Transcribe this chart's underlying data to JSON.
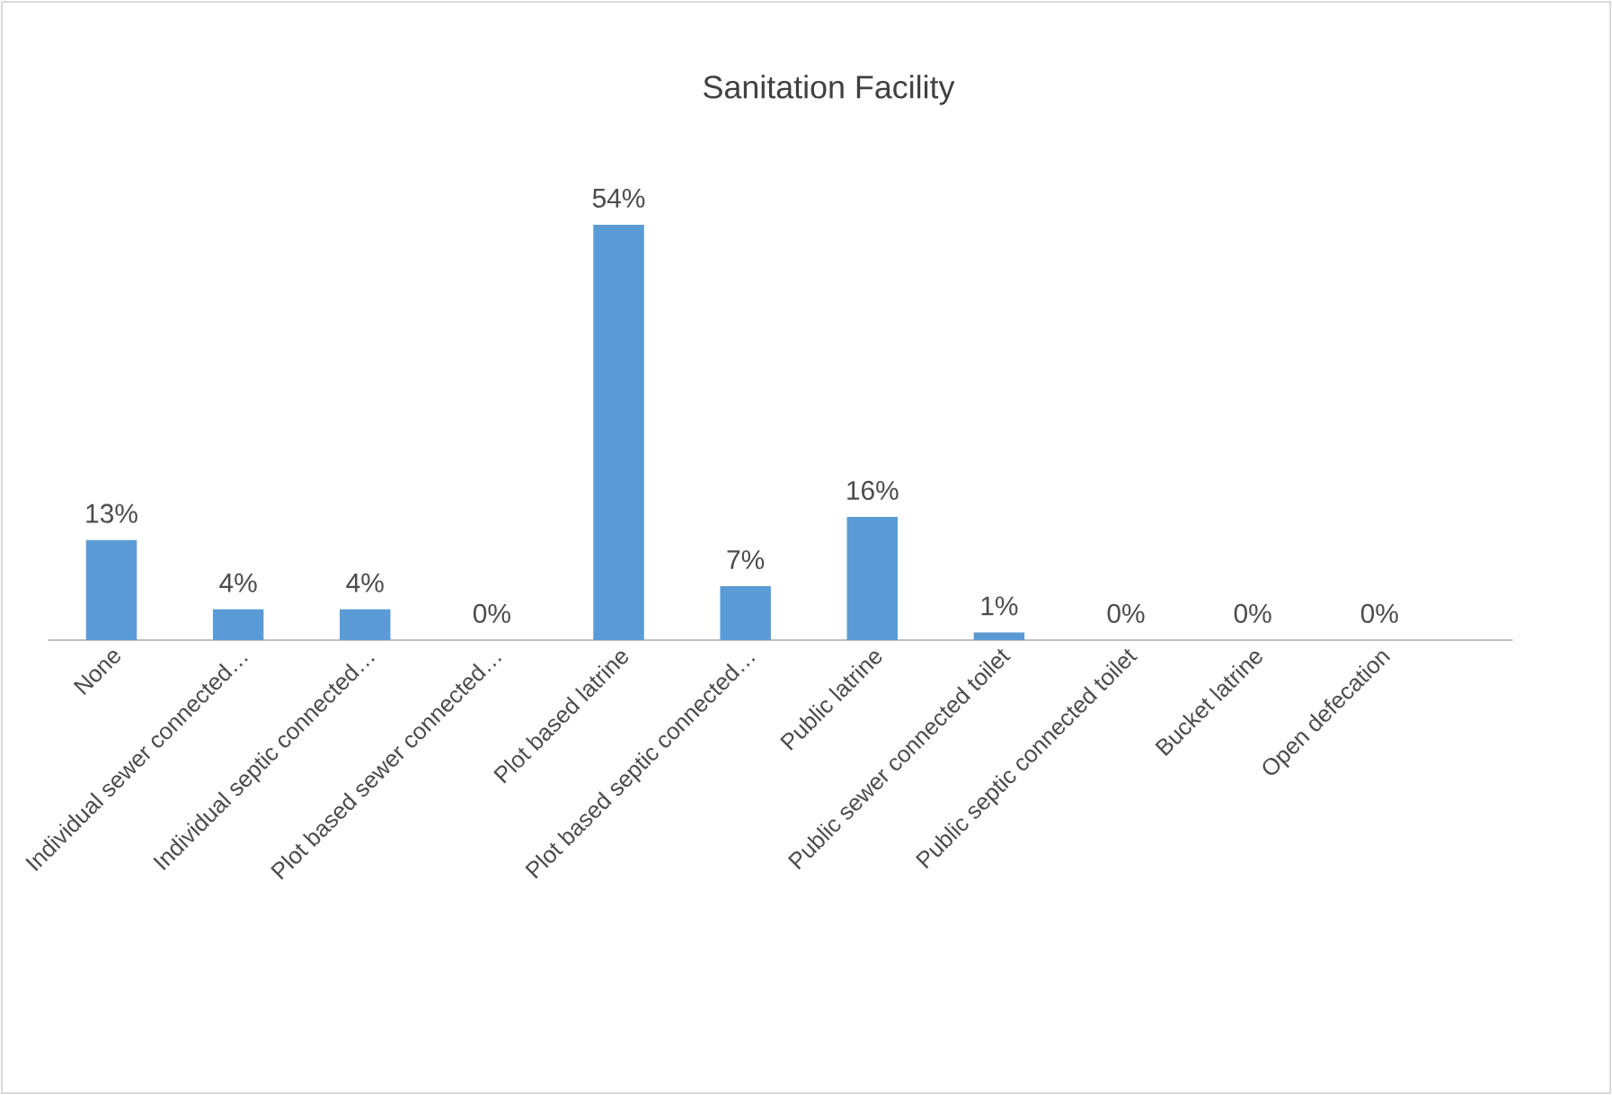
{
  "chart_data": {
    "type": "bar",
    "title": "Sanitation Facility",
    "categories": [
      "None",
      "Individual sewer connected…",
      "Individual septic connected…",
      "Plot based sewer connected…",
      "Plot based latrine",
      "Plot based septic connected…",
      "Public latrine",
      "Public sewer connected toilet",
      "Public septic connected toilet",
      "Bucket latrine",
      "Open defecation"
    ],
    "values": [
      13,
      4,
      4,
      0,
      54,
      7,
      16,
      1,
      0,
      0,
      0
    ],
    "value_labels": [
      "13%",
      "4%",
      "4%",
      "0%",
      "54%",
      "7%",
      "16%",
      "1%",
      "0%",
      "0%",
      "0%"
    ],
    "color": "#5b9bd5"
  }
}
